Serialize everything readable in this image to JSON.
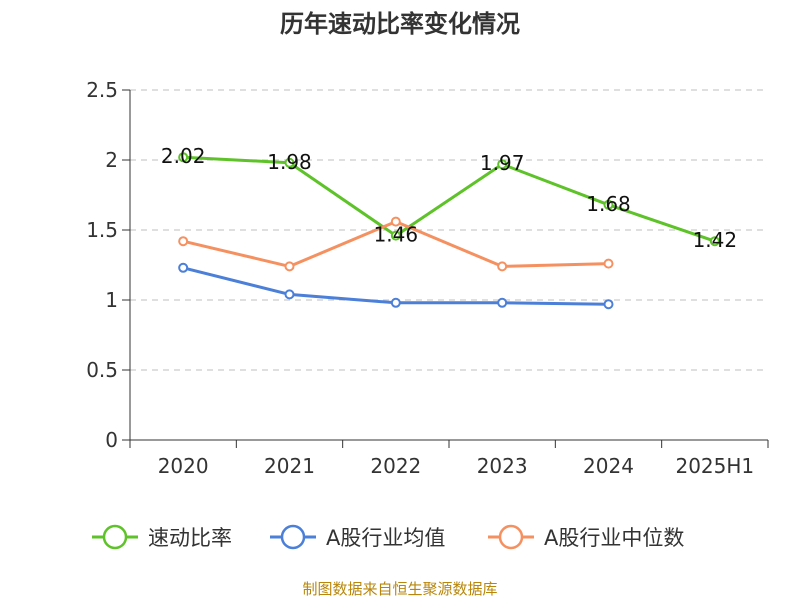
{
  "chart_data": {
    "type": "line",
    "title": "历年速动比率变化情况",
    "categories": [
      "2020",
      "2021",
      "2022",
      "2023",
      "2024",
      "2025H1"
    ],
    "ylim": [
      0,
      2.5
    ],
    "yticks": [
      "0",
      "0.5",
      "1",
      "1.5",
      "2",
      "2.5"
    ],
    "grid": true,
    "legend_position": "bottom",
    "series": [
      {
        "name": "速动比率",
        "color": "#5ec229",
        "values": [
          2.02,
          1.98,
          1.46,
          1.97,
          1.68,
          1.42
        ],
        "labels": [
          "2.02",
          "1.98",
          "1.46",
          "1.97",
          "1.68",
          "1.42"
        ]
      },
      {
        "name": "A股行业均值",
        "color": "#4b7fd8",
        "values": [
          1.23,
          1.04,
          0.98,
          0.98,
          0.97,
          null
        ]
      },
      {
        "name": "A股行业中位数",
        "color": "#f59160",
        "values": [
          1.42,
          1.24,
          1.56,
          1.24,
          1.26,
          null
        ]
      }
    ],
    "source": "制图数据来自恒生聚源数据库"
  }
}
